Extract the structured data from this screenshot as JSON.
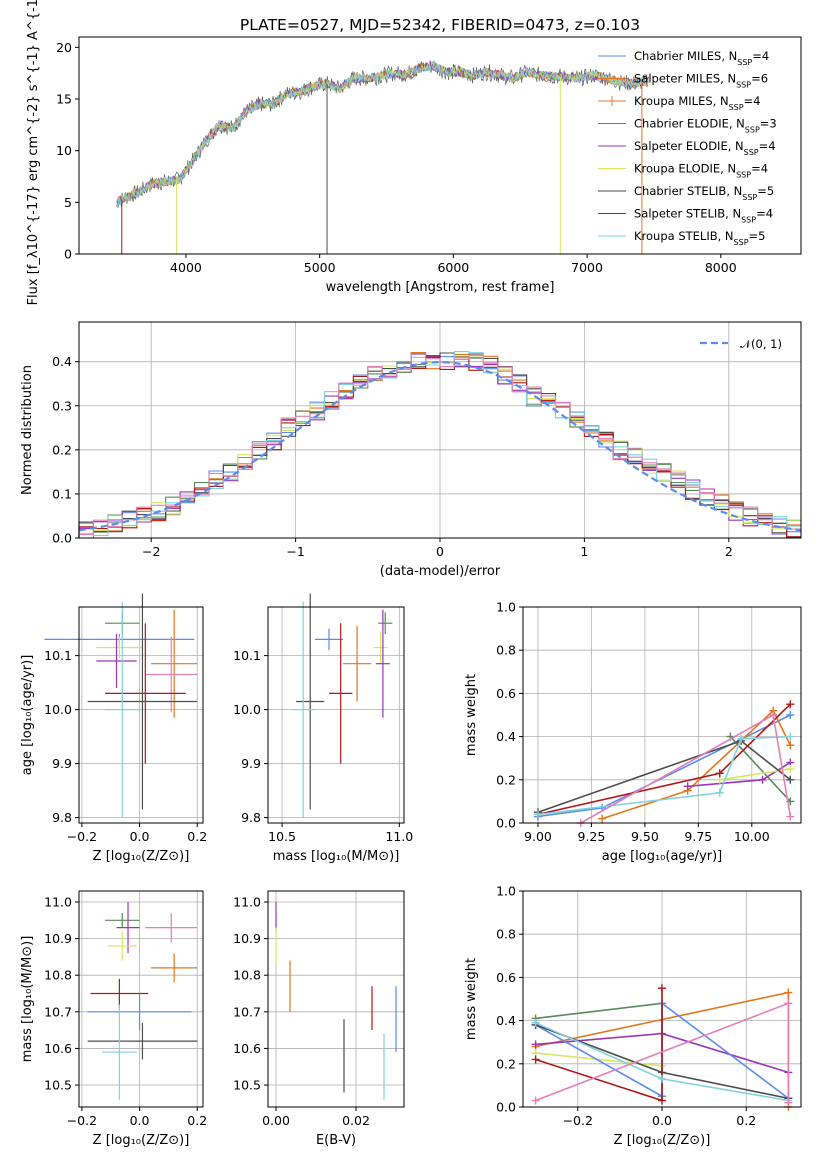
{
  "colors": {
    "chabrier_miles": "#5b8def",
    "salpeter_miles": "#e3761c",
    "kroupa_miles": "#e07b2a",
    "chabrier_elodie": "#5a8a5a",
    "salpeter_elodie": "#9b36b8",
    "kroupa_elodie": "#d6e860",
    "chabrier_stelib": "#4d4d4d",
    "salpeter_stelib": "#b01818",
    "kroupa_stelib": "#7fd3e0",
    "pink": "#e47fb8",
    "gaussian": "#5b8def"
  },
  "chart_data": [
    {
      "type": "line",
      "title": "PLATE=0527, MJD=52342, FIBERID=0473, z=0.103",
      "xlabel": "wavelength [Angstrom, rest frame]",
      "ylabel": "Flux [f_λ10^{-17} erg cm^{-2} s^{-1} A^{-1}]",
      "xlim": [
        3200,
        8600
      ],
      "ylim": [
        0,
        21
      ],
      "xticks": [
        "4000",
        "5000",
        "6000",
        "7000",
        "8000"
      ],
      "yticks": [
        "0",
        "5",
        "10",
        "15",
        "20"
      ],
      "spectrum_x": [
        3480,
        3550,
        3650,
        3750,
        3850,
        3950,
        4050,
        4150,
        4250,
        4350,
        4450,
        4550,
        4650,
        4750,
        4850,
        4950,
        5050,
        5150,
        5250,
        5350,
        5450,
        5550,
        5650,
        5750,
        5850,
        5950,
        6050,
        6150,
        6250,
        6350,
        6450,
        6550,
        6650,
        6750,
        6850,
        6950,
        7050,
        7150,
        7250,
        7350,
        7450
      ],
      "spectrum_y": [
        5.0,
        5.5,
        6.0,
        6.8,
        7.0,
        7.2,
        9.0,
        11.0,
        12.5,
        12.2,
        13.8,
        14.5,
        14.5,
        15.5,
        15.7,
        16.2,
        16.5,
        16.0,
        17.0,
        17.0,
        17.2,
        17.5,
        17.4,
        18.0,
        18.2,
        17.6,
        17.6,
        17.3,
        17.6,
        17.3,
        17.0,
        17.6,
        17.3,
        17.2,
        17.1,
        17.0,
        17.3,
        17.0,
        16.6,
        16.5,
        16.7
      ],
      "legend": [
        {
          "label": "Chabrier MILES, N_{SSP}=4",
          "color": "chabrier_miles",
          "marker": false
        },
        {
          "label": "Salpeter MILES, N_{SSP}=6",
          "color": "salpeter_miles",
          "marker": false
        },
        {
          "label": "Kroupa MILES, N_{SSP}=4",
          "color": "kroupa_miles",
          "marker": true
        },
        {
          "label": "Chabrier ELODIE, N_{SSP}=3",
          "color": "chabrier_elodie",
          "marker": false
        },
        {
          "label": "Salpeter ELODIE, N_{SSP}=4",
          "color": "salpeter_elodie",
          "marker": false
        },
        {
          "label": "Kroupa ELODIE, N_{SSP}=4",
          "color": "kroupa_elodie",
          "marker": false
        },
        {
          "label": "Chabrier STELIB, N_{SSP}=5",
          "color": "chabrier_stelib",
          "marker": false
        },
        {
          "label": "Salpeter STELIB, N_{SSP}=4",
          "color": "salpeter_stelib",
          "marker": false
        },
        {
          "label": "Kroupa STELIB, N_{SSP}=5",
          "color": "kroupa_stelib",
          "marker": false
        }
      ],
      "legend_position": "right"
    },
    {
      "type": "bar",
      "xlabel": "(data-model)/error",
      "ylabel": "Normed distribution",
      "xlim": [
        -2.5,
        2.5
      ],
      "ylim": [
        0,
        0.49
      ],
      "xticks": [
        "−2",
        "−1",
        "0",
        "1",
        "2"
      ],
      "yticks": [
        "0.0",
        "0.1",
        "0.2",
        "0.3",
        "0.4"
      ],
      "bin_width": 0.1,
      "x": [
        -2.45,
        -2.35,
        -2.25,
        -2.15,
        -2.05,
        -1.95,
        -1.85,
        -1.75,
        -1.65,
        -1.55,
        -1.45,
        -1.35,
        -1.25,
        -1.15,
        -1.05,
        -0.95,
        -0.85,
        -0.75,
        -0.65,
        -0.55,
        -0.45,
        -0.35,
        -0.25,
        -0.15,
        -0.05,
        0.05,
        0.15,
        0.25,
        0.35,
        0.45,
        0.55,
        0.65,
        0.75,
        0.85,
        0.95,
        1.05,
        1.15,
        1.25,
        1.35,
        1.45,
        1.55,
        1.65,
        1.75,
        1.85,
        1.95,
        2.05,
        2.15,
        2.25,
        2.35,
        2.45
      ],
      "hist_mean": [
        0.02,
        0.025,
        0.03,
        0.04,
        0.05,
        0.06,
        0.07,
        0.09,
        0.11,
        0.13,
        0.15,
        0.17,
        0.2,
        0.22,
        0.25,
        0.27,
        0.29,
        0.31,
        0.33,
        0.35,
        0.37,
        0.38,
        0.39,
        0.4,
        0.4,
        0.4,
        0.41,
        0.4,
        0.39,
        0.37,
        0.35,
        0.32,
        0.31,
        0.29,
        0.27,
        0.24,
        0.22,
        0.2,
        0.19,
        0.16,
        0.15,
        0.13,
        0.11,
        0.09,
        0.08,
        0.06,
        0.05,
        0.04,
        0.03,
        0.02
      ],
      "series_colors": [
        "chabrier_miles",
        "salpeter_miles",
        "chabrier_elodie",
        "salpeter_elodie",
        "kroupa_elodie",
        "chabrier_stelib",
        "salpeter_stelib",
        "kroupa_stelib",
        "pink"
      ],
      "gaussian_label": "𝒩(0, 1)",
      "legend_position": "top-right"
    },
    {
      "type": "scatter",
      "xlabel": "Z [log₁₀(Z/Z⊙)]",
      "ylabel": "age  [log₁₀(age/yr)]",
      "xlim": [
        -0.21,
        0.22
      ],
      "ylim": [
        9.79,
        10.19
      ],
      "xticks": [
        "−0.2",
        "0.0",
        "0.2"
      ],
      "yticks": [
        "9.8",
        "9.9",
        "10.0",
        "10.1"
      ],
      "points": [
        {
          "x": -0.06,
          "y": 10.16,
          "xerr": 0.06,
          "yerr": 0.02,
          "color": "chabrier_elodie"
        },
        {
          "x": -0.07,
          "y": 10.13,
          "xerr": 0.26,
          "yerr": 0.01,
          "color": "chabrier_miles"
        },
        {
          "x": -0.07,
          "y": 10.115,
          "xerr": 0.08,
          "yerr": 0.02,
          "color": "kroupa_elodie"
        },
        {
          "x": -0.08,
          "y": 10.09,
          "xerr": 0.07,
          "yerr": 0.05,
          "color": "salpeter_elodie"
        },
        {
          "x": 0.12,
          "y": 10.085,
          "xerr": 0.08,
          "yerr": 0.1,
          "color": "salpeter_miles"
        },
        {
          "x": 0.11,
          "y": 10.065,
          "xerr": 0.09,
          "yerr": 0.07,
          "color": "pink"
        },
        {
          "x": 0.02,
          "y": 10.03,
          "xerr": 0.14,
          "yerr": 0.13,
          "color": "salpeter_stelib"
        },
        {
          "x": 0.01,
          "y": 10.015,
          "xerr": 0.19,
          "yerr": 0.2,
          "color": "chabrier_stelib"
        },
        {
          "x": -0.06,
          "y": 10.0,
          "xerr": 0.06,
          "yerr": 0.2,
          "color": "kroupa_stelib"
        }
      ]
    },
    {
      "type": "scatter",
      "xlabel": "mass [log₁₀(M/M⊙)]",
      "ylabel": "",
      "xlim": [
        10.44,
        11.02
      ],
      "ylim": [
        9.79,
        10.19
      ],
      "xticks": [
        "10.5",
        "11.0"
      ],
      "yticks": [
        "9.8",
        "9.9",
        "10.0",
        "10.1"
      ],
      "points": [
        {
          "x": 10.94,
          "y": 10.16,
          "xerr": 0.03,
          "yerr": 0.02,
          "color": "chabrier_elodie"
        },
        {
          "x": 10.7,
          "y": 10.13,
          "xerr": 0.06,
          "yerr": 0.02,
          "color": "chabrier_miles"
        },
        {
          "x": 10.92,
          "y": 10.115,
          "xerr": 0.03,
          "yerr": 0.03,
          "color": "kroupa_elodie"
        },
        {
          "x": 10.93,
          "y": 10.085,
          "xerr": 0.03,
          "yerr": 0.1,
          "color": "salpeter_elodie"
        },
        {
          "x": 10.82,
          "y": 10.085,
          "xerr": 0.06,
          "yerr": 0.07,
          "color": "salpeter_miles"
        },
        {
          "x": 10.75,
          "y": 10.03,
          "xerr": 0.05,
          "yerr": 0.13,
          "color": "salpeter_stelib"
        },
        {
          "x": 10.62,
          "y": 10.015,
          "xerr": 0.06,
          "yerr": 0.2,
          "color": "chabrier_stelib"
        },
        {
          "x": 10.59,
          "y": 10.0,
          "xerr": 0.05,
          "yerr": 0.2,
          "color": "kroupa_stelib"
        }
      ]
    },
    {
      "type": "line",
      "xlabel": "age  [log₁₀(age/yr)]",
      "ylabel": "mass weight",
      "xlim": [
        8.93,
        10.23
      ],
      "ylim": [
        0,
        1.0
      ],
      "xticks": [
        "9.00",
        "9.25",
        "9.50",
        "9.75",
        "10.00"
      ],
      "yticks": [
        "0.0",
        "0.2",
        "0.4",
        "0.6",
        "0.8",
        "1.0"
      ],
      "series": [
        {
          "color": "chabrier_miles",
          "x": [
            9.0,
            9.3,
            10.18
          ],
          "y": [
            0.03,
            0.07,
            0.5
          ]
        },
        {
          "color": "salpeter_miles",
          "x": [
            9.3,
            9.7,
            10.1,
            10.18
          ],
          "y": [
            0.02,
            0.15,
            0.52,
            0.36
          ]
        },
        {
          "color": "chabrier_elodie",
          "x": [
            9.9,
            10.18
          ],
          "y": [
            0.4,
            0.1
          ]
        },
        {
          "color": "salpeter_elodie",
          "x": [
            9.7,
            10.05,
            10.18
          ],
          "y": [
            0.17,
            0.2,
            0.28
          ]
        },
        {
          "color": "kroupa_elodie",
          "x": [
            9.85,
            10.18
          ],
          "y": [
            0.2,
            0.25
          ]
        },
        {
          "color": "chabrier_stelib",
          "x": [
            9.0,
            9.95,
            10.18
          ],
          "y": [
            0.05,
            0.38,
            0.2
          ]
        },
        {
          "color": "salpeter_stelib",
          "x": [
            9.0,
            9.85,
            10.18
          ],
          "y": [
            0.04,
            0.23,
            0.55
          ]
        },
        {
          "color": "kroupa_stelib",
          "x": [
            9.0,
            9.85,
            9.95,
            10.18
          ],
          "y": [
            0.04,
            0.14,
            0.39,
            0.4
          ]
        },
        {
          "color": "pink",
          "x": [
            9.2,
            10.1,
            10.18
          ],
          "y": [
            0.0,
            0.5,
            0.03
          ]
        }
      ]
    },
    {
      "type": "scatter",
      "xlabel": "Z [log₁₀(Z/Z⊙)]",
      "ylabel": "mass [log₁₀(M/M⊙)]",
      "xlim": [
        -0.21,
        0.22
      ],
      "ylim": [
        10.44,
        11.03
      ],
      "xticks": [
        "−0.2",
        "0.0",
        "0.2"
      ],
      "yticks": [
        "10.5",
        "10.6",
        "10.7",
        "10.8",
        "10.9",
        "11.0"
      ],
      "points": [
        {
          "x": -0.06,
          "y": 10.95,
          "xerr": 0.06,
          "yerr": 0.02,
          "color": "chabrier_elodie"
        },
        {
          "x": -0.04,
          "y": 10.93,
          "xerr": 0.04,
          "yerr": 0.07,
          "color": "salpeter_elodie"
        },
        {
          "x": 0.11,
          "y": 10.93,
          "xerr": 0.09,
          "yerr": 0.04,
          "color": "pink"
        },
        {
          "x": -0.06,
          "y": 10.88,
          "xerr": 0.05,
          "yerr": 0.04,
          "color": "kroupa_elodie"
        },
        {
          "x": 0.12,
          "y": 10.82,
          "xerr": 0.08,
          "yerr": 0.04,
          "color": "salpeter_miles"
        },
        {
          "x": -0.07,
          "y": 10.75,
          "xerr": 0.1,
          "yerr": 0.04,
          "color": "salpeter_stelib"
        },
        {
          "x": 0.0,
          "y": 10.7,
          "xerr": 0.18,
          "yerr": 0.05,
          "color": "chabrier_miles"
        },
        {
          "x": 0.01,
          "y": 10.62,
          "xerr": 0.19,
          "yerr": 0.05,
          "color": "chabrier_stelib"
        },
        {
          "x": -0.07,
          "y": 10.59,
          "xerr": 0.06,
          "yerr": 0.13,
          "color": "kroupa_stelib"
        }
      ]
    },
    {
      "type": "scatter",
      "xlabel": "E(B-V)",
      "ylabel": "",
      "xlim": [
        -0.002,
        0.032
      ],
      "ylim": [
        10.44,
        11.03
      ],
      "xticks": [
        "0.00",
        "0.02"
      ],
      "yticks": [
        "10.5",
        "10.6",
        "10.7",
        "10.8",
        "10.9",
        "11.0"
      ],
      "points": [
        {
          "x": 0.0,
          "y": 10.96,
          "xerr": 0,
          "yerr": 0.04,
          "color": "salpeter_elodie"
        },
        {
          "x": 0.0,
          "y": 10.88,
          "xerr": 0,
          "yerr": 0.05,
          "color": "kroupa_elodie"
        },
        {
          "x": 0.0035,
          "y": 10.77,
          "xerr": 0,
          "yerr": 0.07,
          "color": "salpeter_miles"
        },
        {
          "x": 0.017,
          "y": 10.58,
          "xerr": 0,
          "yerr": 0.1,
          "color": "chabrier_stelib"
        },
        {
          "x": 0.024,
          "y": 10.71,
          "xerr": 0,
          "yerr": 0.06,
          "color": "salpeter_stelib"
        },
        {
          "x": 0.027,
          "y": 10.55,
          "xerr": 0,
          "yerr": 0.09,
          "color": "kroupa_stelib"
        },
        {
          "x": 0.03,
          "y": 10.68,
          "xerr": 0,
          "yerr": 0.09,
          "color": "chabrier_miles"
        }
      ]
    },
    {
      "type": "line",
      "xlabel": "Z [log₁₀(Z/Z⊙)]",
      "ylabel": "mass weight",
      "xlim": [
        -0.33,
        0.33
      ],
      "ylim": [
        0,
        1.0
      ],
      "xticks": [
        "−0.2",
        "0.0",
        "0.2"
      ],
      "yticks": [
        "0.0",
        "0.2",
        "0.4",
        "0.6",
        "0.8",
        "1.0"
      ],
      "series": [
        {
          "color": "chabrier_elodie",
          "x": [
            -0.3,
            0.0,
            0.0
          ],
          "y": [
            0.41,
            0.48,
            0.05
          ]
        },
        {
          "color": "salpeter_miles",
          "x": [
            -0.3,
            0.3,
            0.3
          ],
          "y": [
            0.28,
            0.53,
            0.0
          ]
        },
        {
          "color": "salpeter_elodie",
          "x": [
            -0.3,
            0.0,
            0.3
          ],
          "y": [
            0.29,
            0.34,
            0.16
          ]
        },
        {
          "color": "kroupa_elodie",
          "x": [
            -0.3,
            0.0
          ],
          "y": [
            0.25,
            0.19
          ]
        },
        {
          "color": "chabrier_miles",
          "x": [
            -0.3,
            0.0,
            0.0,
            0.3
          ],
          "y": [
            0.38,
            0.05,
            0.48,
            0.04
          ]
        },
        {
          "color": "chabrier_stelib",
          "x": [
            -0.3,
            0.0,
            0.3
          ],
          "y": [
            0.38,
            0.16,
            0.04
          ]
        },
        {
          "color": "salpeter_stelib",
          "x": [
            -0.3,
            0.0,
            0.0
          ],
          "y": [
            0.22,
            0.03,
            0.55
          ]
        },
        {
          "color": "kroupa_stelib",
          "x": [
            -0.3,
            0.0,
            0.3
          ],
          "y": [
            0.39,
            0.13,
            0.03
          ]
        },
        {
          "color": "pink",
          "x": [
            -0.3,
            0.3,
            0.3
          ],
          "y": [
            0.03,
            0.48,
            0.02
          ]
        }
      ]
    }
  ]
}
